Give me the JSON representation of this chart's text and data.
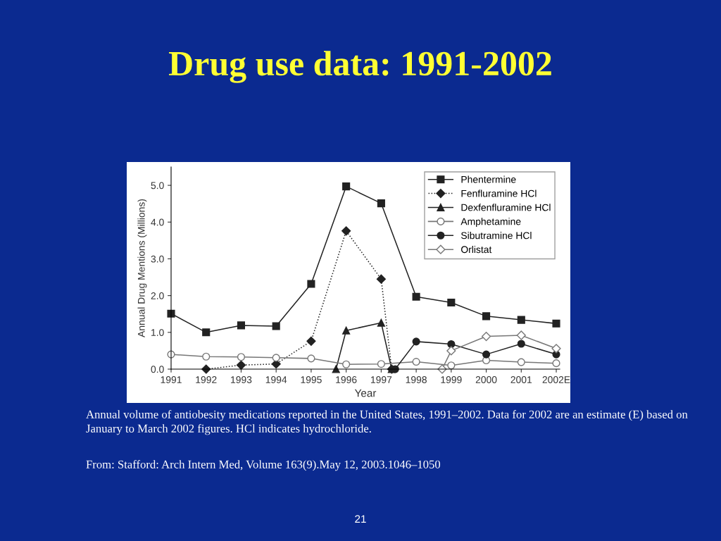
{
  "chart_data": {
    "type": "line",
    "title": "Drug use data: 1991-2002",
    "xlabel": "Year",
    "ylabel": "Annual Drug Mentions (Millions)",
    "xlim": [
      1991,
      2002.1
    ],
    "xticks": [
      1991,
      1992,
      1993,
      1994,
      1995,
      1996,
      1997,
      1998,
      1999,
      2000,
      2001,
      {
        "value": 2002,
        "label": "2002E"
      }
    ],
    "ylim": [
      0,
      5.5
    ],
    "yticks": [
      {
        "value": 0,
        "label": "0.0"
      },
      {
        "value": 1,
        "label": "1.0"
      },
      {
        "value": 2,
        "label": "2.0"
      },
      {
        "value": 3,
        "label": "3.0"
      },
      {
        "value": 4,
        "label": "4.0"
      },
      {
        "value": 5,
        "label": "5.0"
      }
    ],
    "grid": false,
    "legend": "top right",
    "series": [
      {
        "name": "Phentermine",
        "color": "#222222",
        "marker": "square",
        "line_style": "solid",
        "x": [
          1991,
          1992,
          1993,
          1994,
          1995,
          1996,
          1997,
          1998,
          1999,
          2000,
          2001,
          2002
        ],
        "values": [
          1.51,
          1.0,
          1.19,
          1.17,
          2.32,
          4.97,
          4.51,
          1.97,
          1.81,
          1.44,
          1.34,
          1.24
        ]
      },
      {
        "name": "Fenfluramine HCl",
        "color": "#222222",
        "marker": "diamond",
        "line_style": "dotted",
        "x": [
          1992,
          1993,
          1994,
          1995,
          1996,
          1997,
          1997.3
        ],
        "values": [
          0,
          0.11,
          0.14,
          0.76,
          3.76,
          2.45,
          0
        ]
      },
      {
        "name": "Dexfenfluramine HCl",
        "color": "#222222",
        "marker": "triangle",
        "line_style": "solid",
        "x": [
          1995.71,
          1996,
          1997,
          1997.3
        ],
        "values": [
          0,
          1.05,
          1.26,
          0
        ]
      },
      {
        "name": "Amphetamine",
        "color": "#777777",
        "marker": "circle",
        "line_style": "solid",
        "x": [
          1991,
          1992,
          1993,
          1994,
          1995,
          1996,
          1997,
          1998,
          1999,
          2000,
          2001,
          2002
        ],
        "values": [
          0.4,
          0.34,
          0.33,
          0.31,
          0.29,
          0.13,
          0.14,
          0.2,
          0.1,
          0.24,
          0.19,
          0.16
        ]
      },
      {
        "name": "Sibutramine HCl",
        "color": "#222222",
        "marker": "circle",
        "line_style": "solid",
        "x": [
          1997.4,
          1998,
          1999,
          2000,
          2001,
          2002
        ],
        "values": [
          0,
          0.75,
          0.68,
          0.4,
          0.69,
          0.4
        ]
      },
      {
        "name": "Orlistat",
        "color": "#777777",
        "marker": "diamond",
        "line_style": "solid",
        "x": [
          1998.74,
          1999,
          2000,
          2001,
          2002
        ],
        "values": [
          0,
          0.5,
          0.89,
          0.92,
          0.56
        ]
      }
    ],
    "annotations": [
      "Annual volume of antiobesity medications reported in the United States, 1991–2002. Data for 2002 are an estimate (E) based on January to March 2002 figures. HCl indicates hydrochloride.",
      "From: Stafford: Arch Intern Med, Volume 163(9).May 12, 2003.1046–1050",
      "21"
    ]
  }
}
